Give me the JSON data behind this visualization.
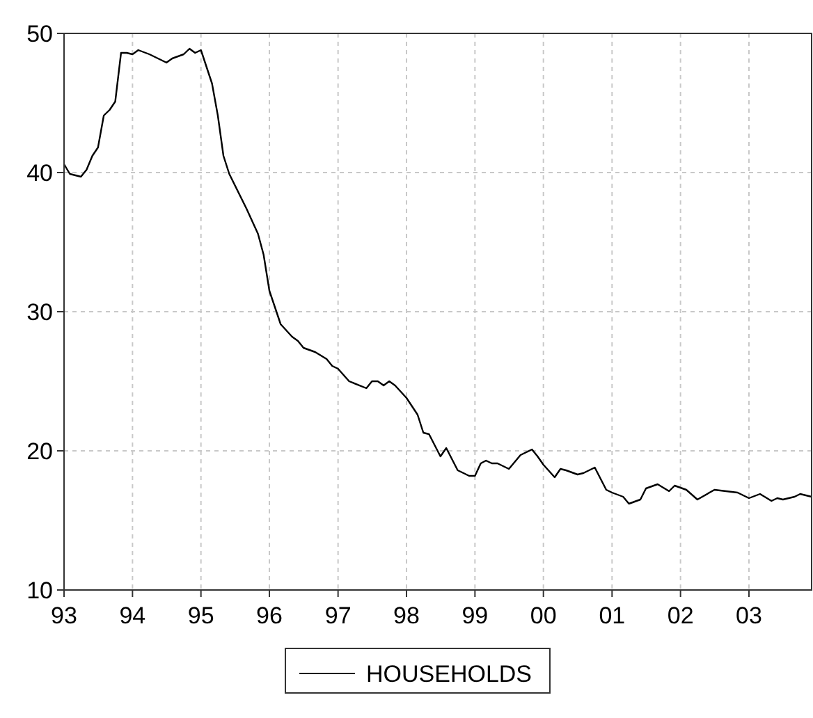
{
  "chart_data": {
    "type": "line",
    "x": [
      "1993-01",
      "1993-02",
      "1993-04",
      "1993-05",
      "1993-06",
      "1993-07",
      "1993-08",
      "1993-09",
      "1993-10",
      "1993-11",
      "1993-12",
      "1994-01",
      "1994-02",
      "1994-04",
      "1994-06",
      "1994-07",
      "1994-08",
      "1994-10",
      "1994-11",
      "1994-12",
      "1995-01",
      "1995-03",
      "1995-04",
      "1995-05",
      "1995-06",
      "1995-09",
      "1995-11",
      "1995-12",
      "1996-01",
      "1996-03",
      "1996-05",
      "1996-06",
      "1996-07",
      "1996-09",
      "1996-11",
      "1996-12",
      "1997-01",
      "1997-03",
      "1997-06",
      "1997-07",
      "1997-08",
      "1997-09",
      "1997-10",
      "1997-11",
      "1998-01",
      "1998-03",
      "1998-04",
      "1998-05",
      "1998-07",
      "1998-08",
      "1998-10",
      "1998-11",
      "1998-12",
      "1999-01",
      "1999-02",
      "1999-03",
      "1999-04",
      "1999-05",
      "1999-07",
      "1999-09",
      "1999-11",
      "1999-12",
      "2000-01",
      "2000-03",
      "2000-04",
      "2000-05",
      "2000-07",
      "2000-08",
      "2000-10",
      "2000-12",
      "2001-01",
      "2001-03",
      "2001-04",
      "2001-06",
      "2001-07",
      "2001-09",
      "2001-11",
      "2001-12",
      "2002-02",
      "2002-04",
      "2002-07",
      "2002-09",
      "2002-11",
      "2003-01",
      "2003-03",
      "2003-05",
      "2003-06",
      "2003-07",
      "2003-09",
      "2003-10",
      "2003-12"
    ],
    "series": [
      {
        "name": "HOUSEHOLDS",
        "color": "#000000",
        "values": [
          40.6,
          39.9,
          39.7,
          40.2,
          41.2,
          41.8,
          44.1,
          44.5,
          45.1,
          48.6,
          48.6,
          48.5,
          48.8,
          48.5,
          48.1,
          47.9,
          48.2,
          48.5,
          48.9,
          48.6,
          48.8,
          46.4,
          44.1,
          41.2,
          39.9,
          37.4,
          35.6,
          34.1,
          31.5,
          29.1,
          28.2,
          27.9,
          27.4,
          27.1,
          26.6,
          26.1,
          25.9,
          25.0,
          24.5,
          25.0,
          25.0,
          24.7,
          25.0,
          24.7,
          23.8,
          22.6,
          21.3,
          21.2,
          19.6,
          20.2,
          18.6,
          18.4,
          18.2,
          18.2,
          19.1,
          19.3,
          19.1,
          19.1,
          18.7,
          19.7,
          20.1,
          19.6,
          19.0,
          18.1,
          18.7,
          18.6,
          18.3,
          18.4,
          18.8,
          17.2,
          17.0,
          16.7,
          16.2,
          16.5,
          17.3,
          17.6,
          17.1,
          17.5,
          17.2,
          16.5,
          17.2,
          17.1,
          17.0,
          16.6,
          16.9,
          16.4,
          16.6,
          16.5,
          16.7,
          16.9,
          16.7
        ]
      }
    ],
    "xlim": [
      "1993-01",
      "2003-12"
    ],
    "xticks": [
      {
        "value": "1993-01",
        "label": "93"
      },
      {
        "value": "1994-01",
        "label": "94"
      },
      {
        "value": "1995-01",
        "label": "95"
      },
      {
        "value": "1996-01",
        "label": "96"
      },
      {
        "value": "1997-01",
        "label": "97"
      },
      {
        "value": "1998-01",
        "label": "98"
      },
      {
        "value": "1999-01",
        "label": "99"
      },
      {
        "value": "2000-01",
        "label": "00"
      },
      {
        "value": "2001-01",
        "label": "01"
      },
      {
        "value": "2002-01",
        "label": "02"
      },
      {
        "value": "2003-01",
        "label": "03"
      }
    ],
    "ylim": [
      10,
      50
    ],
    "yticks": [
      10,
      20,
      30,
      40,
      50
    ],
    "grid": true,
    "legend": "bottom",
    "line_style": "solid"
  }
}
